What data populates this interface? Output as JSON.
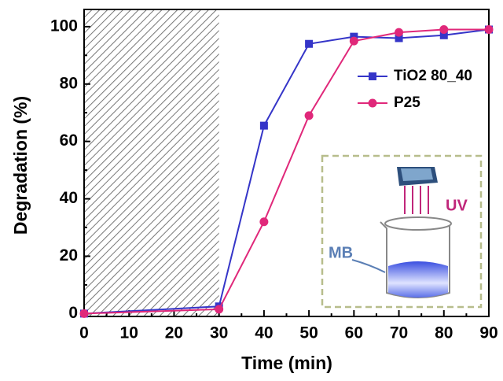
{
  "chart_data": {
    "type": "line",
    "xlabel": "Time (min)",
    "ylabel": "Degradation (%)",
    "x": [
      0,
      30,
      40,
      50,
      60,
      70,
      80,
      90
    ],
    "series": [
      {
        "name": "TiO2 80_40",
        "color": "#3535c8",
        "marker": "square",
        "values": [
          0,
          2.5,
          65.5,
          94,
          96.5,
          96,
          97,
          99
        ]
      },
      {
        "name": "P25",
        "color": "#e0287a",
        "marker": "circle",
        "values": [
          0,
          1.5,
          32,
          69,
          95,
          98,
          99,
          99
        ]
      }
    ],
    "xlim": [
      0,
      90
    ],
    "xticks": [
      0,
      10,
      20,
      30,
      40,
      50,
      60,
      70,
      80,
      90
    ],
    "xminorticks": [
      5,
      15,
      25,
      35,
      45,
      55,
      65,
      75,
      85
    ],
    "ylim": [
      -1,
      106
    ],
    "yticks": [
      0,
      20,
      40,
      60,
      80,
      100
    ],
    "yminorticks": [
      10,
      30,
      50,
      70,
      90
    ],
    "shaded_xrange": [
      0,
      30
    ],
    "legend": "upper right",
    "annotations": [
      "UV",
      "MB"
    ]
  }
}
